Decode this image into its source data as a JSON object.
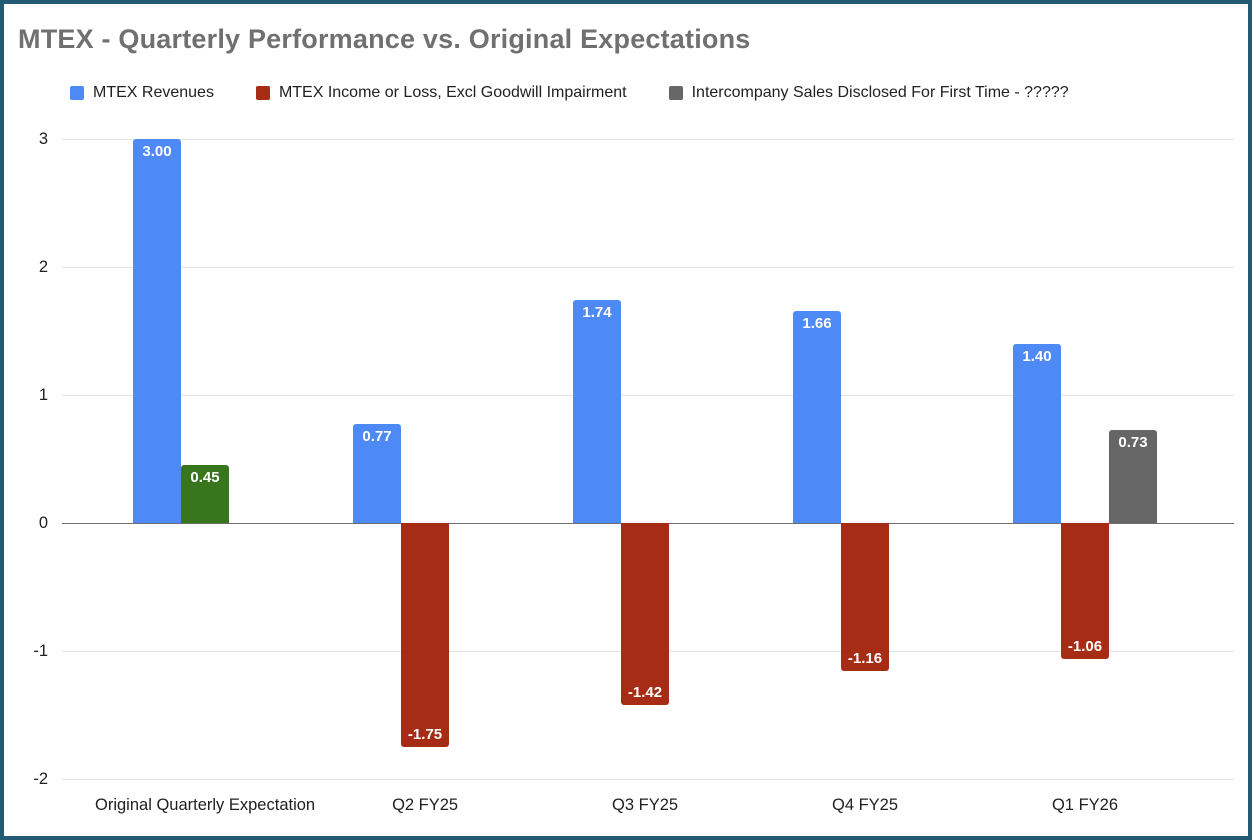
{
  "chart_data": {
    "type": "bar",
    "title": "MTEX - Quarterly Performance vs. Original Expectations",
    "categories": [
      "Original Quarterly Expectation",
      "Q2 FY25",
      "Q3 FY25",
      "Q4 FY25",
      "Q1 FY26"
    ],
    "series": [
      {
        "name": "MTEX Revenues",
        "color": "#4d8af5",
        "values": [
          3.0,
          0.77,
          1.74,
          1.66,
          1.4
        ],
        "labels": [
          "3.00",
          "0.77",
          "1.74",
          "1.66",
          "1.40"
        ],
        "point_colors": [
          null,
          null,
          null,
          null,
          null
        ]
      },
      {
        "name": "MTEX Income or Loss, Excl Goodwill Impairment",
        "color": "#a62c15",
        "values": [
          0.45,
          -1.75,
          -1.42,
          -1.16,
          -1.06
        ],
        "labels": [
          "0.45",
          "-1.75",
          "-1.42",
          "-1.16",
          "-1.06"
        ],
        "point_colors": [
          "#38761d",
          null,
          null,
          null,
          null
        ]
      },
      {
        "name": "Intercompany Sales Disclosed For First Time - ?????",
        "color": "#666666",
        "values": [
          null,
          null,
          null,
          null,
          0.73
        ],
        "labels": [
          null,
          null,
          null,
          null,
          "0.73"
        ],
        "point_colors": [
          null,
          null,
          null,
          null,
          null
        ]
      }
    ],
    "xlabel": "",
    "ylabel": "",
    "ylim": [
      -2,
      3
    ],
    "yticks": [
      3,
      2,
      1,
      0,
      -1,
      -2
    ],
    "grid": true,
    "legend_position": "top",
    "background_color": "#ffffff",
    "frame_border_color": "#235a72",
    "title_color": "#707070"
  }
}
